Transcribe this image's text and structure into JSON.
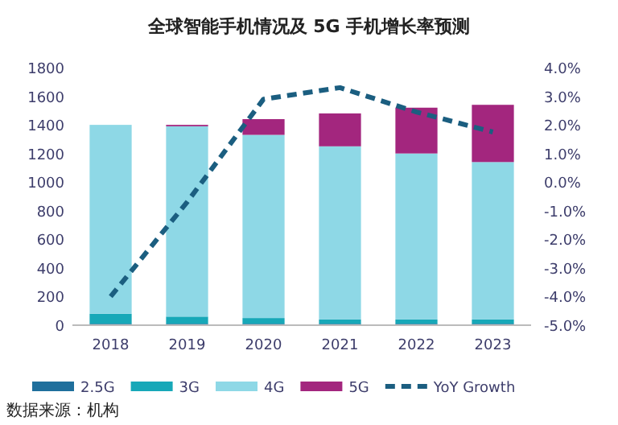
{
  "chart_data": {
    "type": "bar",
    "title": "全球智能手机情况及 5G 手机增长率预测",
    "categories": [
      "2018",
      "2019",
      "2020",
      "2021",
      "2022",
      "2023"
    ],
    "stacked": true,
    "series": [
      {
        "name": "2.5G",
        "color": "#1f6f9c",
        "values": [
          10,
          10,
          10,
          10,
          10,
          10
        ]
      },
      {
        "name": "3G",
        "color": "#17a8b8",
        "values": [
          70,
          50,
          40,
          30,
          30,
          30
        ]
      },
      {
        "name": "4G",
        "color": "#8ed8e6",
        "values": [
          1320,
          1330,
          1280,
          1210,
          1160,
          1100
        ]
      },
      {
        "name": "5G",
        "color": "#a3267e",
        "values": [
          0,
          10,
          110,
          230,
          320,
          400
        ]
      },
      {
        "name": "YoY Growth",
        "type": "line",
        "axis": "y2",
        "line_style": "dashed",
        "color": "#1b5e80",
        "values": [
          -4.0,
          -0.7,
          2.9,
          3.3,
          2.45,
          1.75
        ]
      }
    ],
    "ylim": [
      0,
      1800
    ],
    "yticks": [
      0,
      200,
      400,
      600,
      800,
      1000,
      1200,
      1400,
      1600,
      1800
    ],
    "y2lim": [
      -5,
      4
    ],
    "y2ticks": [
      {
        "value": 4,
        "label": "4.0%"
      },
      {
        "value": 3,
        "label": "3.0%"
      },
      {
        "value": 2,
        "label": "2.0%"
      },
      {
        "value": 1,
        "label": "1.0%"
      },
      {
        "value": 0,
        "label": "0.0%"
      },
      {
        "value": -1,
        "label": "-1.0%"
      },
      {
        "value": -2,
        "label": "-2.0%"
      },
      {
        "value": -3,
        "label": "-3.0%"
      },
      {
        "value": -4,
        "label": "-4.0%"
      },
      {
        "value": -5,
        "label": "-5.0%"
      }
    ],
    "legend": "bottom",
    "annotations": [
      "数据来源：机构"
    ]
  }
}
